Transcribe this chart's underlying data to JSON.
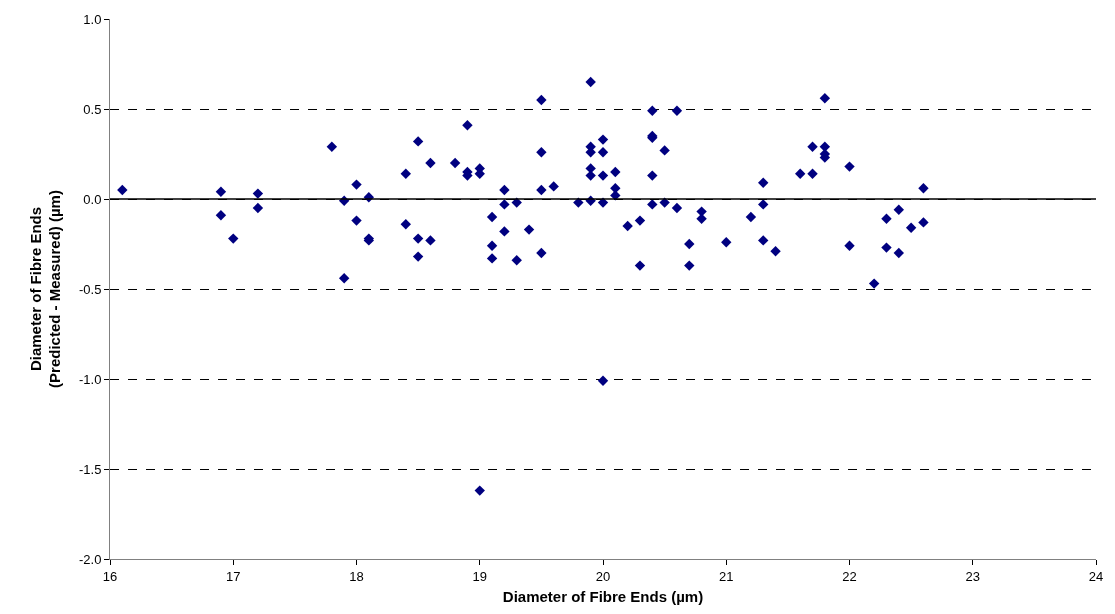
{
  "chart_data": {
    "type": "scatter",
    "xlabel": "Diameter of Fibre Ends (µm)",
    "ylabel": "Diameter of Fibre Ends\n(Predicted - Measured) (µm)",
    "xlim": [
      16,
      24
    ],
    "xticks": [
      16,
      17,
      18,
      19,
      20,
      21,
      22,
      23,
      24
    ],
    "ylim": [
      -2.0,
      1.0
    ],
    "yticks": [
      {
        "value": -2.0,
        "label": "-2.0"
      },
      {
        "value": -1.5,
        "label": "-1.5"
      },
      {
        "value": -1.0,
        "label": "-1.0"
      },
      {
        "value": -0.5,
        "label": "-0.5"
      },
      {
        "value": 0.0,
        "label": "0.0"
      },
      {
        "value": 0.5,
        "label": "0.5"
      },
      {
        "value": 1.0,
        "label": "1.0"
      }
    ],
    "grid": "y",
    "marker": "diamond",
    "ref_lines": [
      {
        "axis": "y",
        "value": 0,
        "label": null,
        "color": "#000000",
        "line_style": "solid"
      }
    ],
    "series": [
      {
        "color": "#000080",
        "x": [
          16.1,
          16.9,
          16.9,
          17.0,
          17.2,
          17.2,
          17.8,
          17.9,
          17.9,
          18.0,
          18.0,
          18.1,
          18.1,
          18.1,
          18.4,
          18.4,
          18.5,
          18.5,
          18.5,
          18.6,
          18.6,
          18.8,
          18.9,
          18.9,
          18.9,
          19.0,
          19.0,
          19.0,
          19.1,
          19.1,
          19.1,
          19.2,
          19.2,
          19.2,
          19.3,
          19.3,
          19.4,
          19.5,
          19.5,
          19.5,
          19.5,
          19.6,
          19.8,
          19.9,
          19.9,
          19.9,
          19.9,
          19.9,
          19.9,
          20.0,
          20.0,
          20.0,
          20.0,
          20.0,
          20.1,
          20.1,
          20.1,
          20.2,
          20.3,
          20.3,
          20.4,
          20.4,
          20.4,
          20.4,
          20.4,
          20.5,
          20.5,
          20.6,
          20.6,
          20.7,
          20.7,
          20.8,
          20.8,
          21.0,
          21.2,
          21.3,
          21.3,
          21.3,
          21.4,
          21.6,
          21.7,
          21.7,
          21.8,
          21.8,
          21.8,
          21.8,
          22.0,
          22.0,
          22.2,
          22.3,
          22.3,
          22.4,
          22.4,
          22.5,
          22.6,
          22.6
        ],
        "values": [
          0.05,
          0.04,
          -0.09,
          -0.22,
          0.03,
          -0.05,
          0.29,
          -0.01,
          -0.44,
          0.08,
          -0.12,
          0.01,
          -0.22,
          -0.23,
          0.14,
          -0.14,
          0.32,
          -0.22,
          -0.32,
          0.2,
          -0.23,
          0.2,
          0.41,
          0.15,
          0.13,
          0.17,
          0.14,
          -1.62,
          -0.1,
          -0.26,
          -0.33,
          0.05,
          -0.03,
          -0.18,
          -0.02,
          -0.34,
          -0.17,
          0.55,
          0.26,
          0.05,
          -0.3,
          0.07,
          -0.02,
          0.65,
          0.29,
          0.26,
          0.17,
          0.13,
          -0.01,
          0.33,
          0.26,
          0.13,
          -0.02,
          -1.01,
          0.15,
          0.06,
          0.02,
          -0.15,
          -0.12,
          -0.37,
          0.49,
          0.35,
          0.34,
          0.13,
          -0.03,
          0.27,
          -0.02,
          0.49,
          -0.05,
          -0.25,
          -0.37,
          -0.07,
          -0.11,
          -0.24,
          -0.1,
          0.09,
          -0.03,
          -0.23,
          -0.29,
          0.14,
          0.29,
          0.14,
          0.56,
          0.29,
          0.25,
          0.23,
          0.18,
          -0.26,
          -0.47,
          -0.11,
          -0.27,
          -0.06,
          -0.3,
          -0.16,
          0.06,
          -0.13
        ]
      }
    ]
  }
}
